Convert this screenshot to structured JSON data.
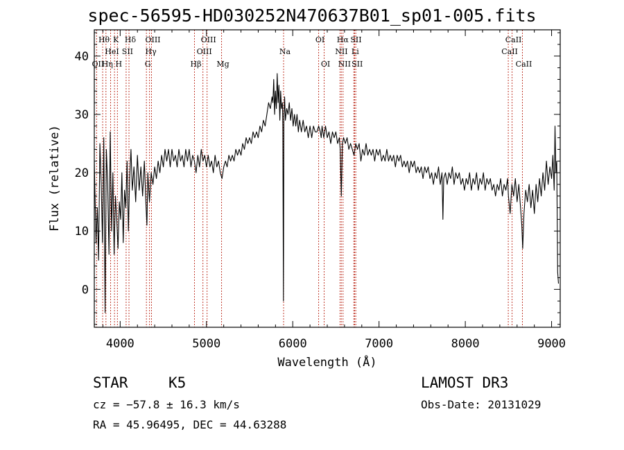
{
  "title": "spec-56595-HD030252N470637B01_sp01-005.fits",
  "info": {
    "class_label": "STAR",
    "subclass": "K5",
    "survey": "LAMOST DR3",
    "cz": "cz = −57.8 ± 16.3 km/s",
    "obs_date": "Obs-Date: 20131029",
    "radec": "RA =  45.96495, DEC =  44.63288"
  },
  "colors": {
    "line_marker": "#c0392b",
    "spectrum": "#000000"
  },
  "chart_data": {
    "type": "line",
    "title": "spec-56595-HD030252N470637B01_sp01-005.fits",
    "xlabel": "Wavelength (Å)",
    "ylabel": "Flux (relative)",
    "xlim": [
      3700,
      9100
    ],
    "ylim": [
      -6.5,
      44.5
    ],
    "xticks": [
      4000,
      5000,
      6000,
      7000,
      8000,
      9000
    ],
    "yticks": [
      0,
      10,
      20,
      30,
      40
    ],
    "spectrum": [
      [
        3700,
        22
      ],
      [
        3720,
        8
      ],
      [
        3735,
        14
      ],
      [
        3750,
        5
      ],
      [
        3765,
        25
      ],
      [
        3780,
        18
      ],
      [
        3795,
        8
      ],
      [
        3810,
        26
      ],
      [
        3825,
        -4
      ],
      [
        3840,
        24
      ],
      [
        3855,
        18
      ],
      [
        3870,
        6
      ],
      [
        3885,
        27
      ],
      [
        3900,
        10
      ],
      [
        3915,
        20
      ],
      [
        3930,
        6
      ],
      [
        3945,
        16
      ],
      [
        3960,
        12
      ],
      [
        3975,
        7
      ],
      [
        3990,
        15
      ],
      [
        4005,
        12
      ],
      [
        4020,
        20
      ],
      [
        4035,
        8
      ],
      [
        4050,
        17
      ],
      [
        4065,
        14
      ],
      [
        4080,
        22
      ],
      [
        4095,
        10
      ],
      [
        4110,
        19
      ],
      [
        4125,
        24
      ],
      [
        4140,
        17
      ],
      [
        4160,
        21
      ],
      [
        4180,
        15
      ],
      [
        4200,
        23
      ],
      [
        4220,
        17
      ],
      [
        4240,
        21
      ],
      [
        4260,
        16
      ],
      [
        4280,
        22
      ],
      [
        4300,
        14
      ],
      [
        4310,
        11
      ],
      [
        4320,
        20
      ],
      [
        4340,
        15
      ],
      [
        4360,
        20
      ],
      [
        4380,
        18
      ],
      [
        4400,
        21
      ],
      [
        4420,
        19
      ],
      [
        4440,
        22
      ],
      [
        4460,
        20
      ],
      [
        4480,
        23
      ],
      [
        4500,
        21
      ],
      [
        4520,
        24
      ],
      [
        4540,
        22
      ],
      [
        4560,
        24
      ],
      [
        4580,
        21
      ],
      [
        4600,
        24
      ],
      [
        4620,
        22
      ],
      [
        4640,
        23
      ],
      [
        4660,
        21
      ],
      [
        4680,
        24
      ],
      [
        4700,
        22
      ],
      [
        4720,
        23
      ],
      [
        4740,
        21
      ],
      [
        4760,
        24
      ],
      [
        4780,
        22
      ],
      [
        4800,
        24
      ],
      [
        4820,
        21
      ],
      [
        4840,
        23
      ],
      [
        4860,
        22
      ],
      [
        4880,
        20
      ],
      [
        4900,
        23
      ],
      [
        4920,
        21
      ],
      [
        4940,
        24
      ],
      [
        4960,
        22
      ],
      [
        4980,
        23
      ],
      [
        5000,
        21
      ],
      [
        5020,
        23
      ],
      [
        5040,
        21
      ],
      [
        5060,
        22
      ],
      [
        5080,
        20
      ],
      [
        5100,
        23
      ],
      [
        5120,
        21
      ],
      [
        5140,
        22
      ],
      [
        5160,
        20
      ],
      [
        5180,
        19
      ],
      [
        5200,
        21
      ],
      [
        5220,
        22
      ],
      [
        5240,
        21
      ],
      [
        5260,
        23
      ],
      [
        5280,
        22
      ],
      [
        5300,
        23
      ],
      [
        5320,
        22
      ],
      [
        5340,
        24
      ],
      [
        5360,
        23
      ],
      [
        5380,
        24
      ],
      [
        5400,
        23
      ],
      [
        5420,
        25
      ],
      [
        5440,
        24
      ],
      [
        5460,
        26
      ],
      [
        5480,
        25
      ],
      [
        5500,
        26
      ],
      [
        5520,
        25
      ],
      [
        5540,
        27
      ],
      [
        5560,
        26
      ],
      [
        5580,
        27
      ],
      [
        5600,
        26
      ],
      [
        5620,
        28
      ],
      [
        5640,
        27
      ],
      [
        5660,
        29
      ],
      [
        5680,
        28
      ],
      [
        5700,
        30
      ],
      [
        5720,
        32
      ],
      [
        5740,
        31
      ],
      [
        5760,
        33
      ],
      [
        5770,
        32
      ],
      [
        5780,
        36
      ],
      [
        5790,
        30
      ],
      [
        5800,
        34
      ],
      [
        5810,
        31
      ],
      [
        5820,
        37
      ],
      [
        5830,
        32
      ],
      [
        5840,
        35
      ],
      [
        5850,
        29
      ],
      [
        5860,
        34
      ],
      [
        5870,
        31
      ],
      [
        5880,
        32
      ],
      [
        5885,
        28
      ],
      [
        5892,
        -2
      ],
      [
        5898,
        30
      ],
      [
        5906,
        33
      ],
      [
        5915,
        29
      ],
      [
        5930,
        31
      ],
      [
        5945,
        30
      ],
      [
        5960,
        32
      ],
      [
        5975,
        29
      ],
      [
        5990,
        31
      ],
      [
        6005,
        28
      ],
      [
        6020,
        30
      ],
      [
        6035,
        28
      ],
      [
        6050,
        30
      ],
      [
        6065,
        27
      ],
      [
        6080,
        29
      ],
      [
        6100,
        27
      ],
      [
        6120,
        29
      ],
      [
        6140,
        27
      ],
      [
        6160,
        28
      ],
      [
        6180,
        26
      ],
      [
        6200,
        28
      ],
      [
        6220,
        26
      ],
      [
        6240,
        28
      ],
      [
        6260,
        27
      ],
      [
        6280,
        27
      ],
      [
        6300,
        28
      ],
      [
        6320,
        27
      ],
      [
        6330,
        26
      ],
      [
        6340,
        28
      ],
      [
        6360,
        26
      ],
      [
        6380,
        28
      ],
      [
        6400,
        26
      ],
      [
        6420,
        27
      ],
      [
        6440,
        25
      ],
      [
        6460,
        27
      ],
      [
        6480,
        26
      ],
      [
        6500,
        27
      ],
      [
        6520,
        25
      ],
      [
        6540,
        26
      ],
      [
        6550,
        24
      ],
      [
        6563,
        16
      ],
      [
        6575,
        25
      ],
      [
        6590,
        26
      ],
      [
        6610,
        25
      ],
      [
        6630,
        26
      ],
      [
        6650,
        24
      ],
      [
        6670,
        25
      ],
      [
        6690,
        24
      ],
      [
        6710,
        23
      ],
      [
        6730,
        25
      ],
      [
        6750,
        24
      ],
      [
        6770,
        25
      ],
      [
        6790,
        22
      ],
      [
        6810,
        24
      ],
      [
        6830,
        23
      ],
      [
        6850,
        25
      ],
      [
        6870,
        23
      ],
      [
        6890,
        24
      ],
      [
        6910,
        23
      ],
      [
        6930,
        24
      ],
      [
        6950,
        22
      ],
      [
        6970,
        24
      ],
      [
        6990,
        23
      ],
      [
        7010,
        24
      ],
      [
        7030,
        22
      ],
      [
        7050,
        23
      ],
      [
        7070,
        22
      ],
      [
        7090,
        24
      ],
      [
        7110,
        22
      ],
      [
        7130,
        23
      ],
      [
        7150,
        22
      ],
      [
        7170,
        23
      ],
      [
        7190,
        21
      ],
      [
        7210,
        23
      ],
      [
        7230,
        22
      ],
      [
        7250,
        23
      ],
      [
        7270,
        21
      ],
      [
        7290,
        22
      ],
      [
        7310,
        21
      ],
      [
        7330,
        22
      ],
      [
        7350,
        20
      ],
      [
        7370,
        22
      ],
      [
        7390,
        21
      ],
      [
        7410,
        22
      ],
      [
        7430,
        20
      ],
      [
        7450,
        21
      ],
      [
        7470,
        20
      ],
      [
        7490,
        21
      ],
      [
        7510,
        19
      ],
      [
        7530,
        21
      ],
      [
        7550,
        20
      ],
      [
        7570,
        21
      ],
      [
        7590,
        19
      ],
      [
        7610,
        20
      ],
      [
        7630,
        18
      ],
      [
        7650,
        20
      ],
      [
        7670,
        19
      ],
      [
        7690,
        21
      ],
      [
        7710,
        18
      ],
      [
        7730,
        20
      ],
      [
        7740,
        12
      ],
      [
        7750,
        19
      ],
      [
        7770,
        20
      ],
      [
        7790,
        18
      ],
      [
        7810,
        20
      ],
      [
        7830,
        19
      ],
      [
        7850,
        21
      ],
      [
        7870,
        18
      ],
      [
        7890,
        20
      ],
      [
        7910,
        19
      ],
      [
        7930,
        20
      ],
      [
        7950,
        18
      ],
      [
        7970,
        19
      ],
      [
        7990,
        17
      ],
      [
        8010,
        19
      ],
      [
        8030,
        18
      ],
      [
        8050,
        20
      ],
      [
        8070,
        17
      ],
      [
        8090,
        19
      ],
      [
        8110,
        18
      ],
      [
        8130,
        20
      ],
      [
        8150,
        17
      ],
      [
        8170,
        19
      ],
      [
        8190,
        18
      ],
      [
        8210,
        20
      ],
      [
        8230,
        17
      ],
      [
        8250,
        19
      ],
      [
        8270,
        18
      ],
      [
        8290,
        19
      ],
      [
        8310,
        17
      ],
      [
        8330,
        18
      ],
      [
        8350,
        16
      ],
      [
        8370,
        18
      ],
      [
        8390,
        17
      ],
      [
        8410,
        19
      ],
      [
        8430,
        16
      ],
      [
        8450,
        18
      ],
      [
        8470,
        17
      ],
      [
        8490,
        19
      ],
      [
        8500,
        16
      ],
      [
        8520,
        13
      ],
      [
        8540,
        18
      ],
      [
        8560,
        16
      ],
      [
        8580,
        19
      ],
      [
        8600,
        15
      ],
      [
        8620,
        18
      ],
      [
        8640,
        14
      ],
      [
        8655,
        11
      ],
      [
        8665,
        7
      ],
      [
        8680,
        13
      ],
      [
        8700,
        17
      ],
      [
        8720,
        15
      ],
      [
        8740,
        18
      ],
      [
        8760,
        14
      ],
      [
        8780,
        17
      ],
      [
        8800,
        13
      ],
      [
        8820,
        18
      ],
      [
        8840,
        15
      ],
      [
        8860,
        19
      ],
      [
        8880,
        16
      ],
      [
        8900,
        20
      ],
      [
        8920,
        17
      ],
      [
        8940,
        22
      ],
      [
        8960,
        18
      ],
      [
        8980,
        21
      ],
      [
        9000,
        19
      ],
      [
        9015,
        23
      ],
      [
        9030,
        17
      ],
      [
        9040,
        28
      ],
      [
        9050,
        20
      ],
      [
        9060,
        22
      ],
      [
        9070,
        3
      ],
      [
        9080,
        1
      ]
    ],
    "lines": [
      {
        "label": "Hθ",
        "x": 3797,
        "row": 1
      },
      {
        "label": "OII",
        "x": 3727,
        "row": 3
      },
      {
        "label": "HeI",
        "x": 3889,
        "row": 2
      },
      {
        "label": "Hη",
        "x": 3835,
        "row": 3
      },
      {
        "label": "K",
        "x": 3934,
        "row": 1
      },
      {
        "label": "H",
        "x": 3968,
        "row": 3
      },
      {
        "label": "Hδ",
        "x": 4102,
        "row": 1
      },
      {
        "label": "SII",
        "x": 4069,
        "row": 2
      },
      {
        "label": "OIII",
        "x": 4363,
        "row": 1
      },
      {
        "label": "Hγ",
        "x": 4340,
        "row": 2
      },
      {
        "label": "G",
        "x": 4304,
        "row": 3
      },
      {
        "label": "Hβ",
        "x": 4861,
        "row": 3
      },
      {
        "label": "OIII",
        "x": 5007,
        "row": 1
      },
      {
        "label": "OIII",
        "x": 4959,
        "row": 2
      },
      {
        "label": "Mg",
        "x": 5175,
        "row": 3
      },
      {
        "label": "Na",
        "x": 5894,
        "row": 2
      },
      {
        "label": "OI",
        "x": 6300,
        "row": 1
      },
      {
        "label": "OI",
        "x": 6364,
        "row": 3
      },
      {
        "label": "Hα",
        "x": 6563,
        "row": 1
      },
      {
        "label": "NII",
        "x": 6548,
        "row": 2
      },
      {
        "label": "NII",
        "x": 6583,
        "row": 3
      },
      {
        "label": "SII",
        "x": 6717,
        "row": 1
      },
      {
        "label": "Li",
        "x": 6708,
        "row": 2
      },
      {
        "label": "SII",
        "x": 6731,
        "row": 3
      },
      {
        "label": "CaII",
        "x": 8542,
        "row": 1
      },
      {
        "label": "CaII",
        "x": 8498,
        "row": 2
      },
      {
        "label": "CaII",
        "x": 8662,
        "row": 3
      }
    ]
  }
}
